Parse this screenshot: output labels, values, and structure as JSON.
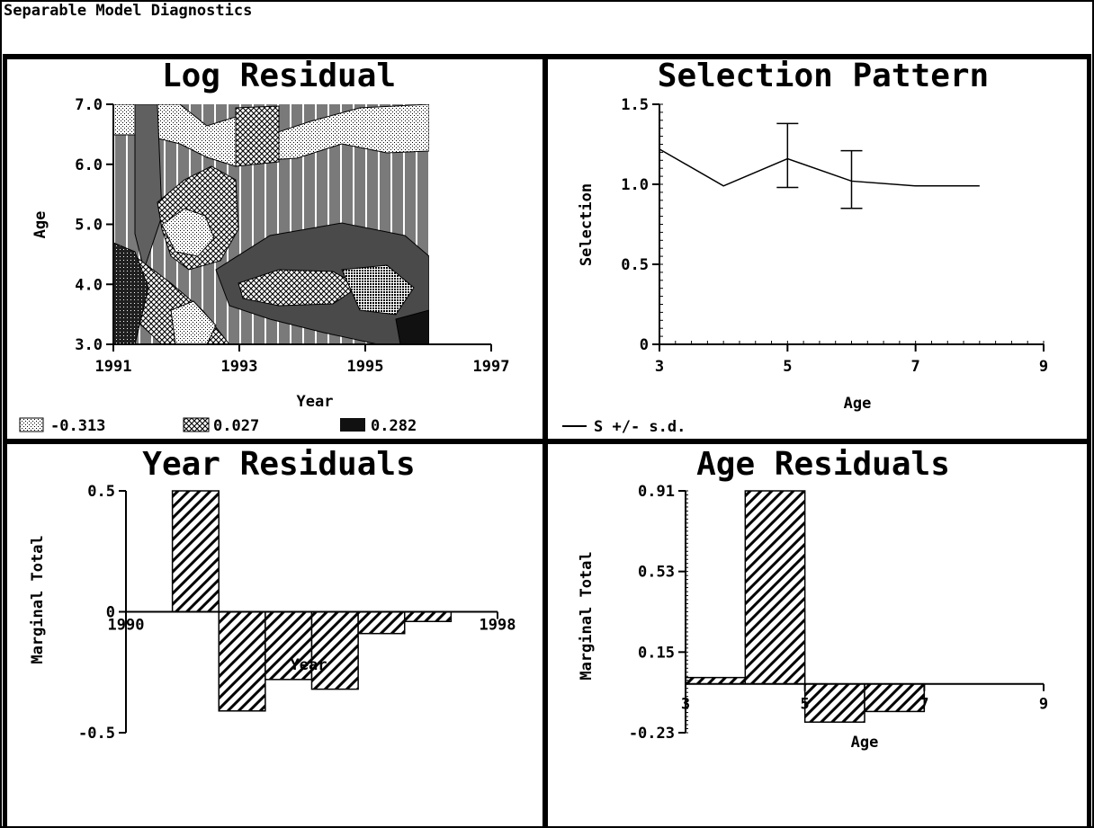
{
  "window": {
    "title": "Separable Model Diagnostics"
  },
  "colors": {
    "ink": "#000000",
    "background": "#ffffff"
  },
  "chart_data": [
    {
      "type": "heatmap",
      "title": "Log Residual",
      "xlabel": "Year",
      "ylabel": "Age",
      "x_ticks": [
        "1991",
        "1993",
        "1995",
        "1997"
      ],
      "y_ticks": [
        "3.0",
        "4.0",
        "5.0",
        "6.0",
        "7.0"
      ],
      "xlim": [
        1991,
        1997
      ],
      "ylim": [
        3.0,
        7.0
      ],
      "data_extent": {
        "x": [
          1991,
          1996
        ],
        "y": [
          3.0,
          7.0
        ]
      },
      "legend": [
        {
          "label": "-0.313",
          "pattern": "light-dots"
        },
        {
          "label": "0.027",
          "pattern": "crosshatch"
        },
        {
          "label": "0.282",
          "pattern": "solid-dark"
        }
      ],
      "legend_position": "bottom",
      "fill": "filled contour regions with gray dot, crosshatch and vertical-line patterns"
    },
    {
      "type": "line",
      "title": "Selection Pattern",
      "xlabel": "Age",
      "ylabel": "Selection",
      "x_ticks": [
        "3",
        "5",
        "7",
        "9"
      ],
      "y_ticks": [
        "0",
        "0.5",
        "1.0",
        "1.5"
      ],
      "xlim": [
        3,
        9
      ],
      "ylim": [
        0,
        1.5
      ],
      "series": [
        {
          "x": [
            3,
            4,
            5,
            6,
            7,
            8
          ],
          "values": [
            1.22,
            0.99,
            1.16,
            1.02,
            0.99,
            0.99
          ]
        }
      ],
      "error_bars": [
        {
          "x": 5,
          "low": 0.98,
          "high": 1.38
        },
        {
          "x": 6,
          "low": 0.85,
          "high": 1.21
        }
      ],
      "legend": [
        {
          "label": "S +/- s.d."
        }
      ],
      "legend_position": "bottom-left"
    },
    {
      "type": "bar",
      "title": "Year Residuals",
      "xlabel": "Year",
      "ylabel": "Marginal Total",
      "x_ticks": [
        "1990",
        "1998"
      ],
      "y_ticks": [
        "-0.5",
        "0",
        "0.5"
      ],
      "xlim": [
        1990,
        1998
      ],
      "ylim": [
        -0.5,
        0.5
      ],
      "x": [
        1991,
        1992,
        1993,
        1994,
        1995,
        1996
      ],
      "values": [
        0.5,
        -0.41,
        -0.28,
        -0.32,
        -0.09,
        -0.04
      ],
      "pattern": "diagonal-hatch"
    },
    {
      "type": "bar",
      "title": "Age Residuals",
      "xlabel": "Age",
      "ylabel": "Marginal Total",
      "x_ticks": [
        "3",
        "5",
        "7",
        "9"
      ],
      "y_ticks": [
        "-0.23",
        "0.15",
        "0.53",
        "0.91"
      ],
      "xlim": [
        3,
        9
      ],
      "ylim": [
        -0.23,
        0.91
      ],
      "x": [
        3,
        4,
        5,
        6
      ],
      "values": [
        0.03,
        0.91,
        -0.18,
        -0.13
      ],
      "pattern": "diagonal-hatch"
    }
  ]
}
